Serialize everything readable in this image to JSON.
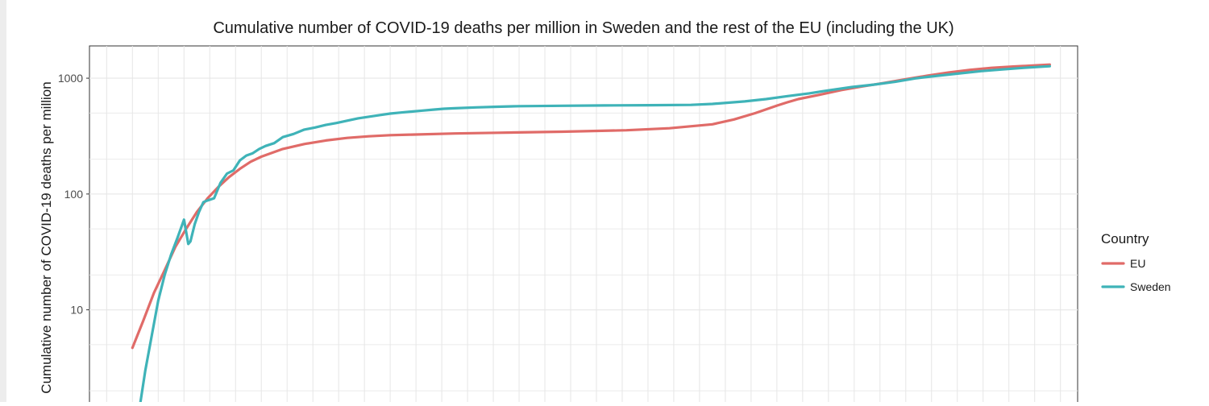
{
  "chart_data": {
    "type": "line",
    "title": "Cumulative number of COVID-19 deaths per million in Sweden and the rest of the EU (including the UK)",
    "xlabel": "",
    "ylabel": "Cumulative number of COVID-19 deaths per million",
    "yscale": "log",
    "ylim": [
      1.2,
      1900
    ],
    "yticks": [
      {
        "value": 10,
        "label": "10"
      },
      {
        "value": 100,
        "label": "100"
      },
      {
        "value": 1000,
        "label": "1000"
      }
    ],
    "xlim": [
      -20,
      440
    ],
    "x_vertical_grid_step": 12,
    "grid": true,
    "legend": {
      "title": "Country",
      "position": "right"
    },
    "series": [
      {
        "name": "EU",
        "color": "#E06B68",
        "x": [
          0,
          5,
          10,
          15,
          20,
          25,
          30,
          35,
          40,
          45,
          50,
          55,
          60,
          70,
          80,
          90,
          100,
          110,
          120,
          130,
          150,
          170,
          200,
          230,
          250,
          270,
          280,
          290,
          300,
          305,
          310,
          320,
          330,
          340,
          350,
          360,
          370,
          380,
          390,
          400,
          410,
          420,
          427
        ],
        "y": [
          4.7,
          8,
          14,
          22,
          35,
          50,
          70,
          92,
          115,
          140,
          165,
          190,
          210,
          245,
          270,
          290,
          305,
          315,
          322,
          326,
          333,
          338,
          345,
          355,
          370,
          400,
          440,
          500,
          580,
          620,
          660,
          720,
          790,
          850,
          910,
          980,
          1050,
          1120,
          1180,
          1230,
          1260,
          1290,
          1310
        ]
      },
      {
        "name": "Sweden",
        "color": "#3FB3B8",
        "x": [
          3,
          6,
          9,
          12,
          15,
          18,
          21,
          24,
          26,
          27,
          29,
          31,
          33,
          35,
          38,
          41,
          44,
          47,
          50,
          53,
          56,
          59,
          62,
          66,
          70,
          75,
          80,
          85,
          90,
          95,
          100,
          105,
          110,
          115,
          120,
          125,
          130,
          135,
          140,
          145,
          150,
          160,
          170,
          180,
          200,
          220,
          240,
          260,
          270,
          285,
          295,
          305,
          315,
          325,
          335,
          345,
          355,
          365,
          375,
          385,
          395,
          405,
          415,
          427
        ],
        "y": [
          1.3,
          3,
          6,
          12,
          20,
          30,
          42,
          60,
          37,
          39,
          55,
          70,
          85,
          88,
          92,
          125,
          150,
          160,
          195,
          215,
          225,
          245,
          260,
          275,
          310,
          330,
          360,
          375,
          395,
          410,
          430,
          450,
          465,
          480,
          495,
          505,
          515,
          525,
          535,
          545,
          550,
          560,
          567,
          573,
          578,
          582,
          585,
          588,
          600,
          630,
          660,
          700,
          740,
          790,
          840,
          880,
          930,
          1000,
          1050,
          1100,
          1150,
          1190,
          1230,
          1270
        ]
      }
    ]
  }
}
